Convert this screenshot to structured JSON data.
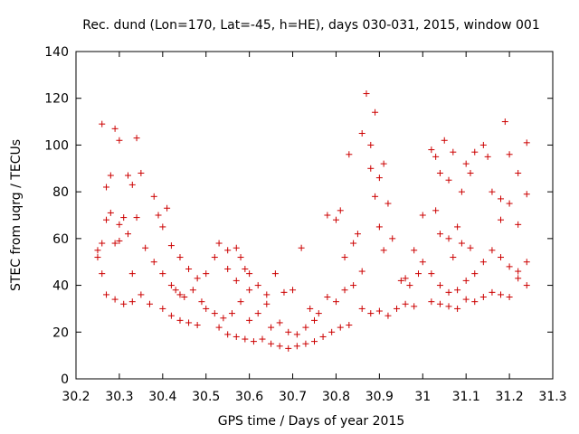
{
  "chart_data": {
    "type": "scatter",
    "title": "Rec. dund (Lon=170, Lat=-45, h=HE), days 030-031, 2015, window 001",
    "xlabel": "GPS time / Days of year 2015",
    "ylabel": "STEC from uqrg / TECUs",
    "xlim": [
      30.2,
      31.3
    ],
    "ylim": [
      0,
      140
    ],
    "xticks": [
      "30.2",
      "30.3",
      "30.4",
      "30.5",
      "30.6",
      "30.7",
      "30.8",
      "30.9",
      "31",
      "31.1",
      "31.2",
      "31.3"
    ],
    "yticks": [
      "0",
      "20",
      "40",
      "60",
      "80",
      "100",
      "120",
      "140"
    ],
    "marker": "+",
    "color": "#cc0000",
    "grid": false,
    "series": [
      {
        "name": "STEC",
        "points": [
          [
            30.26,
            109
          ],
          [
            30.27,
            82
          ],
          [
            30.28,
            87
          ],
          [
            30.29,
            107
          ],
          [
            30.3,
            102
          ],
          [
            30.31,
            69
          ],
          [
            30.32,
            87
          ],
          [
            30.33,
            83
          ],
          [
            30.34,
            103
          ],
          [
            30.35,
            88
          ],
          [
            30.27,
            68
          ],
          [
            30.28,
            71
          ],
          [
            30.3,
            66
          ],
          [
            30.32,
            62
          ],
          [
            30.34,
            69
          ],
          [
            30.29,
            58
          ],
          [
            30.3,
            59
          ],
          [
            30.26,
            58
          ],
          [
            30.25,
            55
          ],
          [
            30.25,
            52
          ],
          [
            30.26,
            45
          ],
          [
            30.27,
            36
          ],
          [
            30.29,
            34
          ],
          [
            30.31,
            32
          ],
          [
            30.33,
            33
          ],
          [
            30.35,
            36
          ],
          [
            30.37,
            32
          ],
          [
            30.33,
            45
          ],
          [
            30.36,
            56
          ],
          [
            30.38,
            78
          ],
          [
            30.39,
            70
          ],
          [
            30.41,
            73
          ],
          [
            30.4,
            65
          ],
          [
            30.42,
            57
          ],
          [
            30.38,
            50
          ],
          [
            30.4,
            45
          ],
          [
            30.42,
            40
          ],
          [
            30.43,
            38
          ],
          [
            30.44,
            36
          ],
          [
            30.4,
            30
          ],
          [
            30.42,
            27
          ],
          [
            30.44,
            25
          ],
          [
            30.46,
            24
          ],
          [
            30.48,
            23
          ],
          [
            30.44,
            52
          ],
          [
            30.46,
            47
          ],
          [
            30.48,
            43
          ],
          [
            30.45,
            35
          ],
          [
            30.47,
            38
          ],
          [
            30.49,
            33
          ],
          [
            30.5,
            30
          ],
          [
            30.52,
            28
          ],
          [
            30.54,
            26
          ],
          [
            30.5,
            45
          ],
          [
            30.52,
            52
          ],
          [
            30.53,
            58
          ],
          [
            30.55,
            55
          ],
          [
            30.57,
            56
          ],
          [
            30.55,
            47
          ],
          [
            30.57,
            42
          ],
          [
            30.59,
            47
          ],
          [
            30.6,
            38
          ],
          [
            30.58,
            33
          ],
          [
            30.56,
            28
          ],
          [
            30.53,
            22
          ],
          [
            30.55,
            19
          ],
          [
            30.57,
            18
          ],
          [
            30.59,
            17
          ],
          [
            30.61,
            16
          ],
          [
            30.63,
            17
          ],
          [
            30.65,
            15
          ],
          [
            30.67,
            14
          ],
          [
            30.69,
            13
          ],
          [
            30.71,
            14
          ],
          [
            30.73,
            15
          ],
          [
            30.75,
            16
          ],
          [
            30.77,
            18
          ],
          [
            30.79,
            20
          ],
          [
            30.81,
            22
          ],
          [
            30.83,
            23
          ],
          [
            30.6,
            25
          ],
          [
            30.62,
            28
          ],
          [
            30.64,
            32
          ],
          [
            30.66,
            45
          ],
          [
            30.68,
            37
          ],
          [
            30.7,
            38
          ],
          [
            30.72,
            56
          ],
          [
            30.74,
            30
          ],
          [
            30.76,
            28
          ],
          [
            30.78,
            35
          ],
          [
            30.65,
            22
          ],
          [
            30.67,
            24
          ],
          [
            30.69,
            20
          ],
          [
            30.71,
            19
          ],
          [
            30.73,
            22
          ],
          [
            30.75,
            25
          ],
          [
            30.64,
            36
          ],
          [
            30.62,
            40
          ],
          [
            30.6,
            45
          ],
          [
            30.58,
            52
          ],
          [
            30.78,
            70
          ],
          [
            30.8,
            68
          ],
          [
            30.81,
            72
          ],
          [
            30.83,
            96
          ],
          [
            30.82,
            52
          ],
          [
            30.84,
            58
          ],
          [
            30.85,
            62
          ],
          [
            30.86,
            105
          ],
          [
            30.87,
            122
          ],
          [
            30.88,
            100
          ],
          [
            30.88,
            90
          ],
          [
            30.89,
            114
          ],
          [
            30.9,
            86
          ],
          [
            30.91,
            92
          ],
          [
            30.89,
            78
          ],
          [
            30.9,
            65
          ],
          [
            30.92,
            75
          ],
          [
            30.91,
            55
          ],
          [
            30.93,
            60
          ],
          [
            30.86,
            46
          ],
          [
            30.84,
            40
          ],
          [
            30.82,
            38
          ],
          [
            30.8,
            33
          ],
          [
            30.86,
            30
          ],
          [
            30.88,
            28
          ],
          [
            30.9,
            29
          ],
          [
            30.92,
            27
          ],
          [
            30.94,
            30
          ],
          [
            30.96,
            32
          ],
          [
            30.98,
            31
          ],
          [
            30.95,
            42
          ],
          [
            30.97,
            40
          ],
          [
            30.99,
            45
          ],
          [
            31.0,
            70
          ],
          [
            31.02,
            98
          ],
          [
            31.03,
            95
          ],
          [
            31.04,
            88
          ],
          [
            31.05,
            102
          ],
          [
            31.06,
            85
          ],
          [
            31.07,
            97
          ],
          [
            31.03,
            72
          ],
          [
            31.04,
            62
          ],
          [
            31.06,
            60
          ],
          [
            31.08,
            65
          ],
          [
            31.09,
            80
          ],
          [
            31.1,
            92
          ],
          [
            31.11,
            88
          ],
          [
            31.12,
            97
          ],
          [
            31.14,
            100
          ],
          [
            31.15,
            95
          ],
          [
            31.16,
            80
          ],
          [
            31.18,
            77
          ],
          [
            31.19,
            110
          ],
          [
            31.2,
            96
          ],
          [
            31.22,
            88
          ],
          [
            31.24,
            101
          ],
          [
            31.24,
            79
          ],
          [
            31.22,
            66
          ],
          [
            31.2,
            75
          ],
          [
            31.18,
            68
          ],
          [
            31.02,
            45
          ],
          [
            31.04,
            40
          ],
          [
            31.06,
            37
          ],
          [
            31.08,
            38
          ],
          [
            31.1,
            42
          ],
          [
            31.12,
            45
          ],
          [
            31.14,
            50
          ],
          [
            31.16,
            55
          ],
          [
            31.18,
            52
          ],
          [
            31.2,
            48
          ],
          [
            31.22,
            46
          ],
          [
            31.24,
            50
          ],
          [
            31.24,
            40
          ],
          [
            31.22,
            43
          ],
          [
            31.2,
            35
          ],
          [
            31.18,
            36
          ],
          [
            31.16,
            37
          ],
          [
            31.14,
            35
          ],
          [
            31.12,
            33
          ],
          [
            31.1,
            34
          ],
          [
            31.08,
            30
          ],
          [
            31.06,
            31
          ],
          [
            31.04,
            32
          ],
          [
            31.02,
            33
          ],
          [
            31.0,
            50
          ],
          [
            30.98,
            55
          ],
          [
            30.96,
            43
          ],
          [
            31.07,
            52
          ],
          [
            31.09,
            58
          ],
          [
            31.11,
            56
          ]
        ]
      }
    ]
  }
}
